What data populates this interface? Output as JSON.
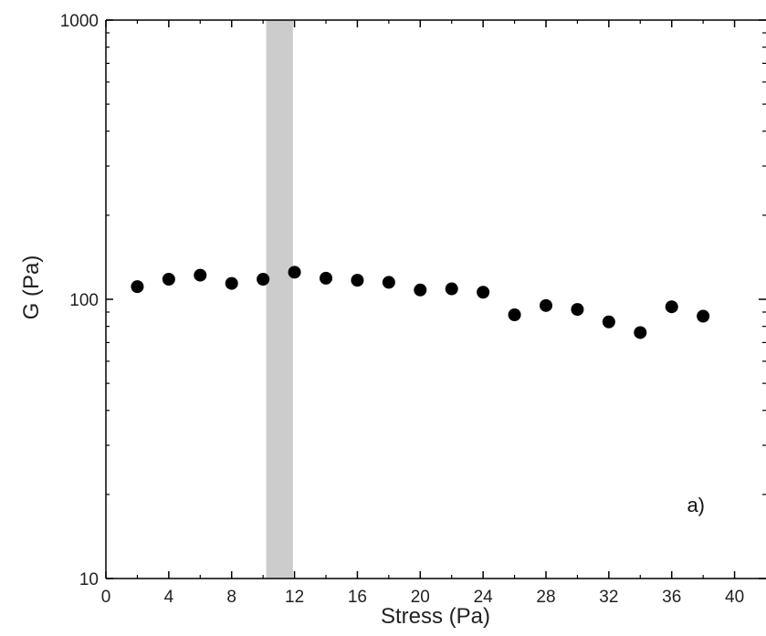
{
  "chart_data": {
    "type": "scatter",
    "title": "",
    "xlabel": "Stress (Pa)",
    "ylabel": "G (Pa)",
    "xlim": [
      0,
      42
    ],
    "ylim": [
      10,
      1000
    ],
    "yscale": "log",
    "x_ticks": [
      0,
      4,
      8,
      12,
      16,
      20,
      24,
      28,
      32,
      36,
      40
    ],
    "x_tick_labels": [
      "0",
      "4",
      "8",
      "12",
      "16",
      "20",
      "24",
      "28",
      "32",
      "36",
      "40"
    ],
    "y_ticks": [
      10,
      100,
      1000
    ],
    "y_tick_labels": [
      "10",
      "100",
      "1000"
    ],
    "grid": false,
    "annotation": "a)",
    "shaded_band": {
      "x_start": 10.2,
      "x_end": 11.9,
      "color": "#cccccc"
    },
    "marker_color": "#000000",
    "series": [
      {
        "x": [
          2,
          4,
          6,
          8,
          10,
          12,
          14,
          16,
          18,
          20,
          22,
          24,
          26,
          28,
          30,
          32,
          34,
          36,
          38
        ],
        "y": [
          111,
          118,
          122,
          114,
          118,
          125,
          119,
          117,
          115,
          108,
          109,
          106,
          88,
          95,
          92,
          83,
          76,
          94,
          87
        ]
      }
    ]
  }
}
